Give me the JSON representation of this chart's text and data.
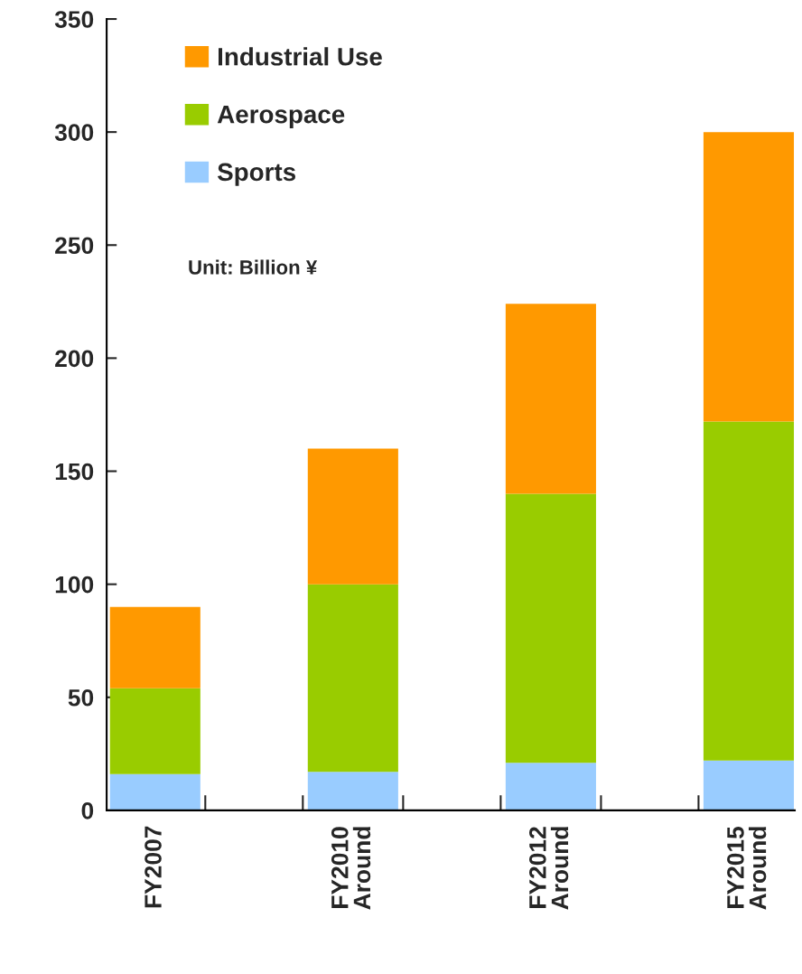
{
  "chart_data": {
    "type": "bar",
    "stacked": true,
    "categories": [
      "FY2007",
      "FY2010\nAround",
      "FY2012\nAround",
      "FY2015\nAround"
    ],
    "series": [
      {
        "name": "Sports",
        "color": "#99ccff",
        "values": [
          16,
          17,
          21,
          22
        ]
      },
      {
        "name": "Aerospace",
        "color": "#99cc00",
        "values": [
          38,
          83,
          119,
          150
        ]
      },
      {
        "name": "Industrial Use",
        "color": "#ff9900",
        "values": [
          36,
          60,
          84,
          128
        ]
      }
    ],
    "ylim": [
      0,
      350
    ],
    "yticks": [
      0,
      50,
      100,
      150,
      200,
      250,
      300,
      350
    ],
    "grid": false,
    "legend": "top left",
    "annotations": [
      "Unit: Billion ¥"
    ]
  }
}
